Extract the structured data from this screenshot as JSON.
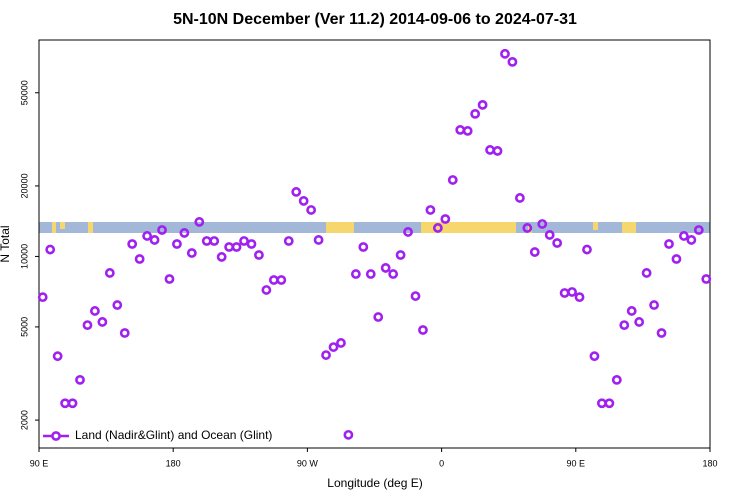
{
  "chart_data": {
    "type": "scatter",
    "title": "5N-10N December (Ver 11.2)   2014-09-06 to 2024-07-31",
    "xlabel": "Longitude (deg E)",
    "ylabel": "N Total",
    "xlim": [
      90,
      540
    ],
    "ylim": [
      1520,
      84000
    ],
    "ylog": true,
    "legend": "bottom-left",
    "xticks": [
      {
        "value": 90,
        "label": "90 E"
      },
      180,
      {
        "value": 270,
        "label": "90 W"
      },
      {
        "value": 360,
        "label": "0"
      },
      {
        "value": 450,
        "label": "90 E"
      },
      {
        "value": 540,
        "label": "180"
      }
    ],
    "yticks": [
      2000,
      5000,
      10000,
      20000,
      50000
    ],
    "series": [
      {
        "name": "Land (Nadir&Glint) and Ocean (Glint)",
        "color": "#a020f0",
        "x": [
          92.5,
          97.5,
          102.5,
          107.5,
          112.5,
          117.5,
          122.5,
          127.5,
          132.5,
          137.5,
          142.5,
          147.5,
          152.5,
          157.5,
          162.5,
          167.5,
          172.5,
          177.5,
          182.5,
          187.5,
          192.5,
          197.5,
          202.5,
          207.5,
          212.5,
          217.5,
          222.5,
          227.5,
          232.5,
          237.5,
          242.5,
          247.5,
          252.5,
          257.5,
          262.5,
          267.5,
          272.5,
          277.5,
          282.5,
          287.5,
          292.5,
          297.5,
          302.5,
          307.5,
          312.5,
          317.5,
          322.5,
          327.5,
          332.5,
          337.5,
          342.5,
          347.5,
          352.5,
          357.5,
          362.5,
          367.5,
          372.5,
          377.5,
          382.5,
          387.5,
          392.5,
          397.5,
          402.5,
          407.5,
          412.5,
          417.5,
          422.5,
          427.5,
          432.5,
          437.5,
          442.5,
          447.5,
          452.5,
          457.5,
          462.5,
          467.5,
          472.5,
          477.5,
          482.5,
          487.5,
          492.5,
          497.5,
          502.5,
          507.5,
          512.5,
          517.5,
          522.5,
          527.5,
          532.5,
          537.5
        ],
        "values": [
          6700,
          10700,
          3750,
          2360,
          2360,
          2970,
          5090,
          5850,
          5250,
          8500,
          6200,
          4710,
          11300,
          9750,
          12230,
          11760,
          12970,
          8010,
          11300,
          12600,
          10340,
          14040,
          11640,
          11640,
          9950,
          10970,
          10970,
          11640,
          11300,
          10140,
          7190,
          7930,
          7930,
          11640,
          18860,
          17260,
          15790,
          11760,
          3790,
          4100,
          4270,
          1730,
          8410,
          10970,
          8410,
          5510,
          8930,
          8410,
          10140,
          12720,
          6770,
          4850,
          15790,
          13230,
          14450,
          21210,
          34700,
          34360,
          40620,
          44380,
          28500,
          28220,
          73320,
          67750,
          17770,
          13230,
          10440,
          13760,
          12350,
          11410,
          6980,
          7050,
          6700,
          10700,
          3750,
          2360,
          2360,
          2970,
          5090,
          5850,
          5250,
          8500,
          6200,
          4710,
          11300,
          9750,
          12230,
          11760,
          12970,
          8010
        ]
      }
    ]
  }
}
